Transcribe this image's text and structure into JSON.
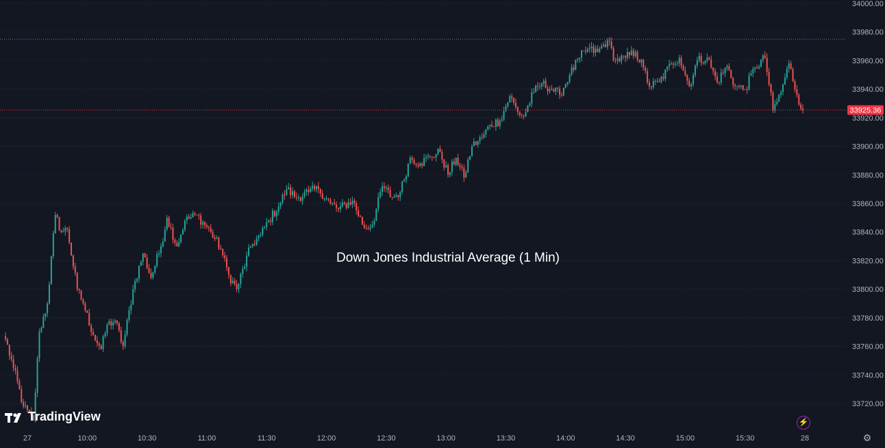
{
  "chart_data": {
    "type": "candlestick",
    "title": "Down Jones Industrial Average (1 Min)",
    "brand": "TradingView",
    "y_ticks": [
      "33720.00",
      "33740.00",
      "33760.00",
      "33780.00",
      "33800.00",
      "33820.00",
      "33840.00",
      "33860.00",
      "33880.00",
      "33900.00",
      "33920.00",
      "33940.00",
      "33960.00",
      "33980.00",
      "34000.00"
    ],
    "y_tick_values": [
      33720,
      33740,
      33760,
      33780,
      33800,
      33820,
      33840,
      33860,
      33880,
      33900,
      33920,
      33940,
      33960,
      33980,
      34000
    ],
    "ylim": [
      33710,
      34001
    ],
    "x_ticks": [
      "27",
      "10:00",
      "10:30",
      "11:00",
      "11:30",
      "12:00",
      "12:30",
      "13:00",
      "13:30",
      "14:00",
      "14:30",
      "15:00",
      "15:30",
      "28"
    ],
    "x_tick_times": [
      "09:30",
      "10:00",
      "10:30",
      "11:00",
      "11:30",
      "12:00",
      "12:30",
      "13:00",
      "13:30",
      "14:00",
      "14:30",
      "15:00",
      "15:30",
      "16:00"
    ],
    "session": {
      "start": "09:19",
      "end": "15:59"
    },
    "last_price": 33925.36,
    "last_price_label": "33925.36",
    "high_line": 33975,
    "colors": {
      "background": "#131722",
      "up": "#26a69a",
      "down": "#ef5350",
      "axis_text": "#b2b5be",
      "last_price": "#f23645",
      "high_line": "#787b86"
    },
    "anchors": [
      [
        "09:19",
        33765
      ],
      [
        "09:23",
        33745
      ],
      [
        "09:28",
        33718
      ],
      [
        "09:33",
        33708
      ],
      [
        "09:36",
        33770
      ],
      [
        "09:40",
        33790
      ],
      [
        "09:44",
        33852
      ],
      [
        "09:47",
        33840
      ],
      [
        "09:50",
        33842
      ],
      [
        "09:55",
        33800
      ],
      [
        "09:58",
        33790
      ],
      [
        "10:03",
        33768
      ],
      [
        "10:07",
        33758
      ],
      [
        "10:10",
        33775
      ],
      [
        "10:14",
        33778
      ],
      [
        "10:18",
        33760
      ],
      [
        "10:23",
        33800
      ],
      [
        "10:28",
        33825
      ],
      [
        "10:32",
        33808
      ],
      [
        "10:37",
        33830
      ],
      [
        "10:40",
        33850
      ],
      [
        "10:45",
        33830
      ],
      [
        "10:49",
        33848
      ],
      [
        "10:55",
        33852
      ],
      [
        "11:02",
        33840
      ],
      [
        "11:07",
        33828
      ],
      [
        "11:11",
        33810
      ],
      [
        "11:15",
        33800
      ],
      [
        "11:22",
        33830
      ],
      [
        "11:27",
        33838
      ],
      [
        "11:31",
        33848
      ],
      [
        "11:36",
        33858
      ],
      [
        "11:40",
        33870
      ],
      [
        "11:45",
        33864
      ],
      [
        "11:51",
        33868
      ],
      [
        "11:56",
        33870
      ],
      [
        "12:02",
        33860
      ],
      [
        "12:06",
        33856
      ],
      [
        "12:13",
        33862
      ],
      [
        "12:19",
        33843
      ],
      [
        "12:23",
        33845
      ],
      [
        "12:28",
        33872
      ],
      [
        "12:33",
        33864
      ],
      [
        "12:37",
        33868
      ],
      [
        "12:42",
        33892
      ],
      [
        "12:47",
        33888
      ],
      [
        "12:52",
        33893
      ],
      [
        "12:57",
        33896
      ],
      [
        "13:01",
        33880
      ],
      [
        "13:05",
        33892
      ],
      [
        "13:09",
        33878
      ],
      [
        "13:13",
        33900
      ],
      [
        "13:18",
        33906
      ],
      [
        "13:22",
        33915
      ],
      [
        "13:27",
        33918
      ],
      [
        "13:32",
        33935
      ],
      [
        "13:36",
        33924
      ],
      [
        "13:39",
        33921
      ],
      [
        "13:44",
        33938
      ],
      [
        "13:48",
        33944
      ],
      [
        "13:53",
        33940
      ],
      [
        "13:57",
        33936
      ],
      [
        "14:02",
        33950
      ],
      [
        "14:07",
        33962
      ],
      [
        "14:11",
        33968
      ],
      [
        "14:16",
        33966
      ],
      [
        "14:21",
        33974
      ],
      [
        "14:25",
        33960
      ],
      [
        "14:30",
        33962
      ],
      [
        "14:35",
        33966
      ],
      [
        "14:39",
        33955
      ],
      [
        "14:42",
        33942
      ],
      [
        "14:47",
        33945
      ],
      [
        "14:53",
        33958
      ],
      [
        "14:57",
        33962
      ],
      [
        "15:02",
        33942
      ],
      [
        "15:06",
        33960
      ],
      [
        "15:11",
        33962
      ],
      [
        "15:16",
        33945
      ],
      [
        "15:21",
        33956
      ],
      [
        "15:25",
        33942
      ],
      [
        "15:30",
        33940
      ],
      [
        "15:35",
        33955
      ],
      [
        "15:40",
        33962
      ],
      [
        "15:44",
        33925
      ],
      [
        "15:48",
        33938
      ],
      [
        "15:52",
        33958
      ],
      [
        "15:56",
        33936
      ],
      [
        "15:59",
        33925
      ]
    ]
  }
}
